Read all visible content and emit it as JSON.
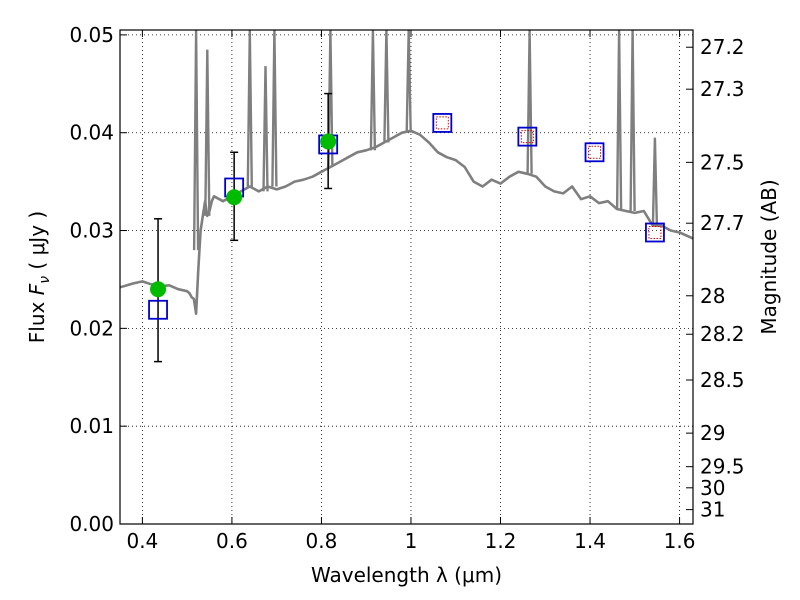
{
  "chart_data": {
    "type": "scatter",
    "xlabel": "Wavelength  λ (μm)",
    "ylabel": "Flux  F_ν  ( μJy )",
    "y2label": "Magnitude (AB)",
    "xlim": [
      0.35,
      1.63
    ],
    "ylim": [
      0.0,
      0.0505
    ],
    "x_ticks": [
      0.4,
      0.6,
      0.8,
      1.0,
      1.2,
      1.4,
      1.6
    ],
    "x_tick_labels": [
      "0.4",
      "0.6",
      "0.8",
      "1",
      "1.2",
      "1.4",
      "1.6"
    ],
    "y_ticks": [
      0.0,
      0.01,
      0.02,
      0.03,
      0.04,
      0.05
    ],
    "y_tick_labels": [
      "0.00",
      "0.01",
      "0.02",
      "0.03",
      "0.04",
      "0.05"
    ],
    "y2_ticks": [
      {
        "label": "27.2",
        "flux": 0.04874
      },
      {
        "label": "27.3",
        "flux": 0.04445
      },
      {
        "label": "27.5",
        "flux": 0.03697
      },
      {
        "label": "27.7",
        "flux": 0.03075
      },
      {
        "label": "28",
        "flux": 0.02333
      },
      {
        "label": "28.2",
        "flux": 0.0194
      },
      {
        "label": "28.5",
        "flux": 0.01472
      },
      {
        "label": "29",
        "flux": 0.00929
      },
      {
        "label": "29.5",
        "flux": 0.00586
      },
      {
        "label": "30",
        "flux": 0.0037
      },
      {
        "label": "31",
        "flux": 0.00147
      }
    ],
    "grid": true,
    "series": [
      {
        "kind": "line",
        "color": "#7f7f7f",
        "x": [
          0.35,
          0.38,
          0.4,
          0.42,
          0.44,
          0.46,
          0.48,
          0.5,
          0.505,
          0.51,
          0.515,
          0.52,
          0.525,
          0.53,
          0.54,
          0.545,
          0.55,
          0.555,
          0.56,
          0.58,
          0.6,
          0.62,
          0.64,
          0.66,
          0.68,
          0.7,
          0.72,
          0.74,
          0.76,
          0.78,
          0.8,
          0.82,
          0.84,
          0.86,
          0.88,
          0.9,
          0.92,
          0.94,
          0.96,
          0.98,
          1.0,
          1.02,
          1.04,
          1.06,
          1.08,
          1.1,
          1.12,
          1.14,
          1.16,
          1.18,
          1.2,
          1.22,
          1.24,
          1.26,
          1.28,
          1.3,
          1.32,
          1.34,
          1.36,
          1.38,
          1.4,
          1.42,
          1.44,
          1.46,
          1.48,
          1.5,
          1.52,
          1.54,
          1.56,
          1.58,
          1.6,
          1.63
        ],
        "y": [
          0.0242,
          0.0246,
          0.0248,
          0.0245,
          0.0243,
          0.0244,
          0.024,
          0.0238,
          0.0236,
          0.0232,
          0.023,
          0.0215,
          0.026,
          0.03,
          0.033,
          0.0315,
          0.032,
          0.033,
          0.0335,
          0.033,
          0.0335,
          0.034,
          0.0345,
          0.034,
          0.0345,
          0.0342,
          0.0345,
          0.035,
          0.0352,
          0.0355,
          0.036,
          0.0365,
          0.037,
          0.0375,
          0.038,
          0.0382,
          0.0385,
          0.039,
          0.0395,
          0.04,
          0.0402,
          0.0398,
          0.039,
          0.038,
          0.0375,
          0.0372,
          0.0365,
          0.035,
          0.0345,
          0.0352,
          0.0348,
          0.0355,
          0.036,
          0.0358,
          0.0355,
          0.0345,
          0.034,
          0.0338,
          0.0345,
          0.0332,
          0.0335,
          0.0328,
          0.033,
          0.0322,
          0.032,
          0.0318,
          0.032,
          0.0305,
          0.0305,
          0.03,
          0.0298,
          0.0292
        ]
      },
      {
        "kind": "spikes",
        "color": "#7f7f7f",
        "points": [
          {
            "x": 0.52,
            "y": 0.0505,
            "base": 0.028
          },
          {
            "x": 0.545,
            "y": 0.0485,
            "base": 0.0315
          },
          {
            "x": 0.64,
            "y": 0.0505,
            "base": 0.0345
          },
          {
            "x": 0.675,
            "y": 0.0468,
            "base": 0.034
          },
          {
            "x": 0.695,
            "y": 0.0505,
            "base": 0.0345
          },
          {
            "x": 0.82,
            "y": 0.0505,
            "base": 0.0365
          },
          {
            "x": 0.915,
            "y": 0.0505,
            "base": 0.0382
          },
          {
            "x": 0.945,
            "y": 0.0505,
            "base": 0.039
          },
          {
            "x": 0.995,
            "y": 0.0505,
            "base": 0.04
          },
          {
            "x": 1.265,
            "y": 0.0505,
            "base": 0.0358
          },
          {
            "x": 1.465,
            "y": 0.0505,
            "base": 0.0322
          },
          {
            "x": 1.495,
            "y": 0.0505,
            "base": 0.032
          },
          {
            "x": 1.545,
            "y": 0.0395,
            "base": 0.0305
          }
        ]
      },
      {
        "kind": "points-errorbar",
        "color": "#00bb00",
        "x": [
          0.435,
          0.605,
          0.815
        ],
        "y": [
          0.024,
          0.0334,
          0.0391
        ],
        "yerr_low": [
          0.0166,
          0.029,
          0.0343
        ],
        "yerr_high": [
          0.0312,
          0.038,
          0.044
        ]
      },
      {
        "kind": "blue-squares",
        "color": "#0000cc",
        "x": [
          0.435,
          0.605,
          0.815,
          1.07,
          1.26,
          1.41,
          1.545
        ],
        "y": [
          0.0219,
          0.0344,
          0.0388,
          0.041,
          0.0396,
          0.038,
          0.0298
        ]
      },
      {
        "kind": "red-squares",
        "color": "#dd0000",
        "x": [
          1.07,
          1.26,
          1.41,
          1.545
        ],
        "y": [
          0.041,
          0.0396,
          0.038,
          0.0298
        ]
      }
    ]
  }
}
